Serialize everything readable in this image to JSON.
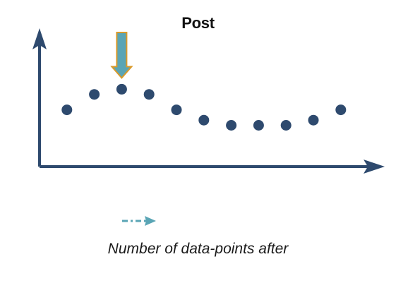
{
  "diagram": {
    "title": "Post",
    "caption": "Number of data-points after",
    "colors": {
      "axis": "#2e4a6e",
      "point": "#2e4a6e",
      "marker_fill": "#5aa5b5",
      "marker_stroke": "#d99a2b",
      "small_arrow": "#5aa5b5"
    },
    "marker_icon": "down-arrow-icon",
    "legend_icon": "dash-dot-arrow-icon"
  },
  "chart_data": {
    "type": "scatter",
    "title": "Post",
    "xlabel": "",
    "ylabel": "",
    "x": [
      1,
      2,
      3,
      4,
      5,
      6,
      7,
      8,
      9,
      10,
      11
    ],
    "y": [
      0.55,
      0.7,
      0.75,
      0.7,
      0.55,
      0.45,
      0.4,
      0.4,
      0.4,
      0.45,
      0.55
    ],
    "highlight_index": 2,
    "xlim": [
      0,
      12.5
    ],
    "ylim": [
      0,
      1.3
    ],
    "grid": false,
    "axis_ticks": false
  }
}
